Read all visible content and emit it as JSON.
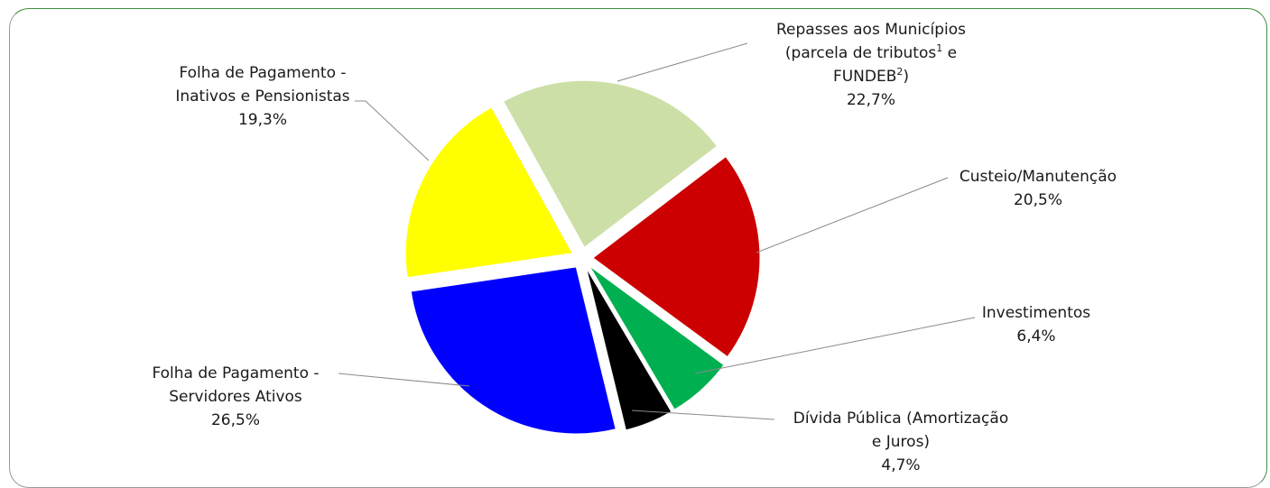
{
  "chart_data": {
    "type": "pie",
    "title": "",
    "slices": [
      {
        "name_lines": [
          "Repasses aos Municípios",
          [
            "(parcela de tributos",
            "1",
            " e"
          ],
          [
            "FUNDEB",
            "2",
            ")"
          ]
        ],
        "value": 22.7,
        "label": "22,7%",
        "color": "#ccdfa6"
      },
      {
        "name_lines": [
          "Custeio/Manutenção"
        ],
        "value": 20.5,
        "label": "20,5%",
        "color": "#cc0000"
      },
      {
        "name_lines": [
          "Investimentos"
        ],
        "value": 6.4,
        "label": "6,4%",
        "color": "#00b050"
      },
      {
        "name_lines": [
          "Dívida Pública (Amortização",
          "e Juros)"
        ],
        "value": 4.7,
        "label": "4,7%",
        "color": "#000000"
      },
      {
        "name_lines": [
          "Folha de Pagamento -",
          "Servidores Ativos"
        ],
        "value": 26.5,
        "label": "26,5%",
        "color": "#0000ff"
      },
      {
        "name_lines": [
          "Folha de Pagamento -",
          "Inativos e Pensionistas"
        ],
        "value": 19.3,
        "label": "19,3%",
        "color": "#ffff00"
      }
    ]
  }
}
